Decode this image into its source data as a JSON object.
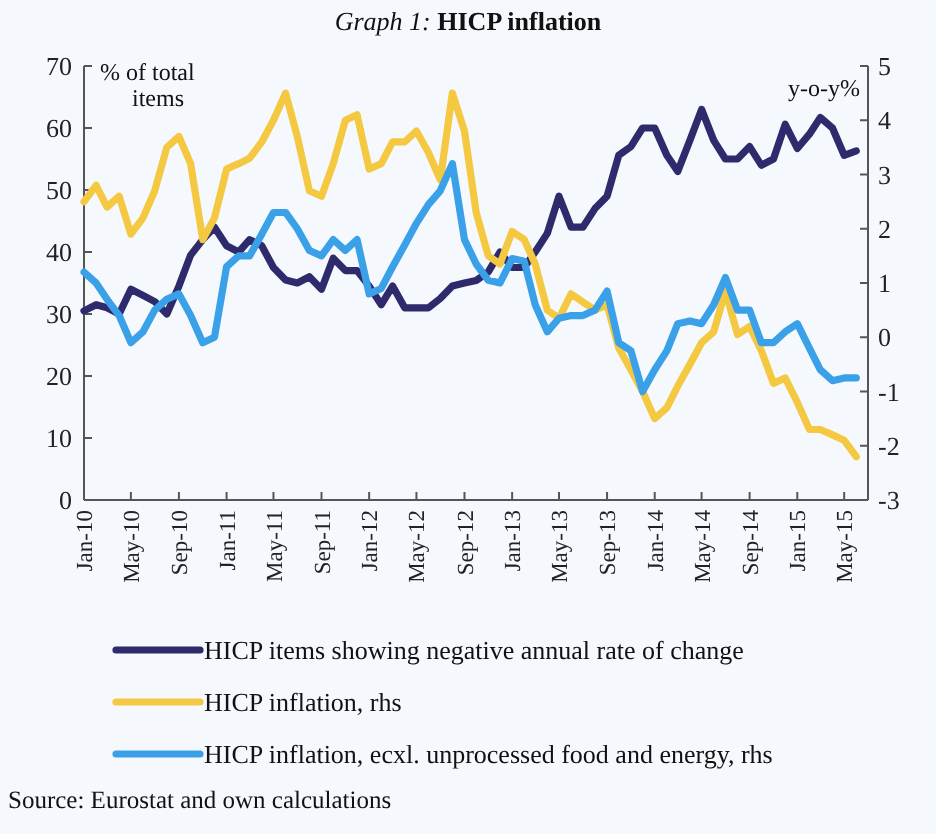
{
  "chart_data": {
    "type": "line",
    "title": "Graph 1: HICP inflation",
    "ylabel": "% of total items",
    "y2label": "y-o-y%",
    "x": [
      "2010-01",
      "2010-02",
      "2010-03",
      "2010-04",
      "2010-05",
      "2010-06",
      "2010-07",
      "2010-08",
      "2010-09",
      "2010-10",
      "2010-11",
      "2010-12",
      "2011-01",
      "2011-02",
      "2011-03",
      "2011-04",
      "2011-05",
      "2011-06",
      "2011-07",
      "2011-08",
      "2011-09",
      "2011-10",
      "2011-11",
      "2011-12",
      "2012-01",
      "2012-02",
      "2012-03",
      "2012-04",
      "2012-05",
      "2012-06",
      "2012-07",
      "2012-08",
      "2012-09",
      "2012-10",
      "2012-11",
      "2012-12",
      "2013-01",
      "2013-02",
      "2013-03",
      "2013-04",
      "2013-05",
      "2013-06",
      "2013-07",
      "2013-08",
      "2013-09",
      "2013-10",
      "2013-11",
      "2013-12",
      "2014-01",
      "2014-02",
      "2014-03",
      "2014-04",
      "2014-05",
      "2014-06",
      "2014-07",
      "2014-08",
      "2014-09",
      "2014-10",
      "2014-11",
      "2014-12",
      "2015-01",
      "2015-02",
      "2015-03",
      "2015-04",
      "2015-05",
      "2015-06"
    ],
    "series": [
      {
        "name": "HICP items showing negative annual rate of change",
        "color": "#2e2a6b",
        "values": [
          30.5,
          31.5,
          31,
          30,
          34,
          33,
          32,
          30,
          34.5,
          39.5,
          42,
          44,
          41,
          40,
          42,
          41,
          37.5,
          35.5,
          35,
          36,
          34,
          39,
          37,
          37,
          34.5,
          31.5,
          34.5,
          31,
          31,
          31,
          32.5,
          34.5,
          35,
          35.4,
          36.8,
          40,
          37.5,
          37.5,
          40,
          43,
          49,
          44,
          44,
          47,
          49,
          55.6,
          57,
          60,
          60,
          55.6,
          53,
          58,
          63,
          58,
          55,
          55,
          57,
          54,
          55,
          60.6,
          56.7,
          59,
          61.7,
          60,
          55.6,
          56.3
        ]
      },
      {
        "name": "HICP inflation, rhs",
        "color": "#f5c842",
        "axis": "y2",
        "values": [
          2.5,
          2.8,
          2.4,
          2.6,
          1.9,
          2.2,
          2.7,
          3.5,
          3.7,
          3.2,
          1.8,
          2.2,
          3.1,
          3.2,
          3.3,
          3.6,
          4.0,
          4.5,
          3.7,
          2.7,
          2.6,
          3.2,
          4.0,
          4.1,
          3.1,
          3.2,
          3.6,
          3.6,
          3.8,
          3.4,
          2.9,
          4.5,
          3.8,
          2.3,
          1.5,
          1.35,
          1.95,
          1.8,
          1.35,
          0.5,
          0.35,
          0.8,
          0.65,
          0.5,
          0.6,
          -0.2,
          -0.6,
          -1.0,
          -1.5,
          -1.3,
          -0.9,
          -0.5,
          -0.1,
          0.1,
          0.85,
          0.05,
          0.2,
          -0.25,
          -0.85,
          -0.75,
          -1.2,
          -1.7,
          -1.7,
          -1.8,
          -1.9,
          -2.2
        ]
      },
      {
        "name": "HICP inflation, ecxl. unprocessed food and energy, rhs",
        "color": "#3aa0e8",
        "axis": "y2",
        "values": [
          1.2,
          1.0,
          0.7,
          0.4,
          -0.1,
          0.1,
          0.5,
          0.7,
          0.8,
          0.4,
          -0.1,
          0.0,
          1.3,
          1.5,
          1.5,
          1.9,
          2.3,
          2.3,
          2.0,
          1.6,
          1.5,
          1.8,
          1.6,
          1.8,
          0.8,
          0.9,
          1.3,
          1.7,
          2.1,
          2.45,
          2.7,
          3.2,
          1.8,
          1.35,
          1.05,
          1.0,
          1.45,
          1.4,
          0.6,
          0.1,
          0.35,
          0.4,
          0.4,
          0.5,
          0.85,
          -0.1,
          -0.25,
          -1.0,
          -0.6,
          -0.25,
          0.25,
          0.3,
          0.25,
          0.6,
          1.1,
          0.5,
          0.5,
          -0.1,
          -0.1,
          0.1,
          0.25,
          -0.2,
          -0.6,
          -0.8,
          -0.75,
          -0.75
        ]
      }
    ],
    "xlim": [
      "2010-01",
      "2015-07"
    ],
    "xticks": [
      {
        "value": "2010-01",
        "label": "Jan-10"
      },
      {
        "value": "2010-05",
        "label": "May-10"
      },
      {
        "value": "2010-09",
        "label": "Sep-10"
      },
      {
        "value": "2011-01",
        "label": "Jan-11"
      },
      {
        "value": "2011-05",
        "label": "May-11"
      },
      {
        "value": "2011-09",
        "label": "Sep-11"
      },
      {
        "value": "2012-01",
        "label": "Jan-12"
      },
      {
        "value": "2012-05",
        "label": "May-12"
      },
      {
        "value": "2012-09",
        "label": "Sep-12"
      },
      {
        "value": "2013-01",
        "label": "Jan-13"
      },
      {
        "value": "2013-05",
        "label": "May-13"
      },
      {
        "value": "2013-09",
        "label": "Sep-13"
      },
      {
        "value": "2014-01",
        "label": "Jan-14"
      },
      {
        "value": "2014-05",
        "label": "May-14"
      },
      {
        "value": "2014-09",
        "label": "Sep-14"
      },
      {
        "value": "2015-01",
        "label": "Jan-15"
      },
      {
        "value": "2015-05",
        "label": "May-15"
      }
    ],
    "ylim": [
      0,
      70
    ],
    "yticks": [
      0,
      10,
      20,
      30,
      40,
      50,
      60,
      70
    ],
    "y2lim": [
      -3,
      5
    ],
    "y2ticks": [
      -3,
      -2,
      -1,
      0,
      1,
      2,
      3,
      4,
      5
    ],
    "grid": false,
    "legend": "bottom",
    "marker": "none",
    "line_style": "solid",
    "annotations": [
      "Source: Eurostat and own calculations"
    ]
  }
}
